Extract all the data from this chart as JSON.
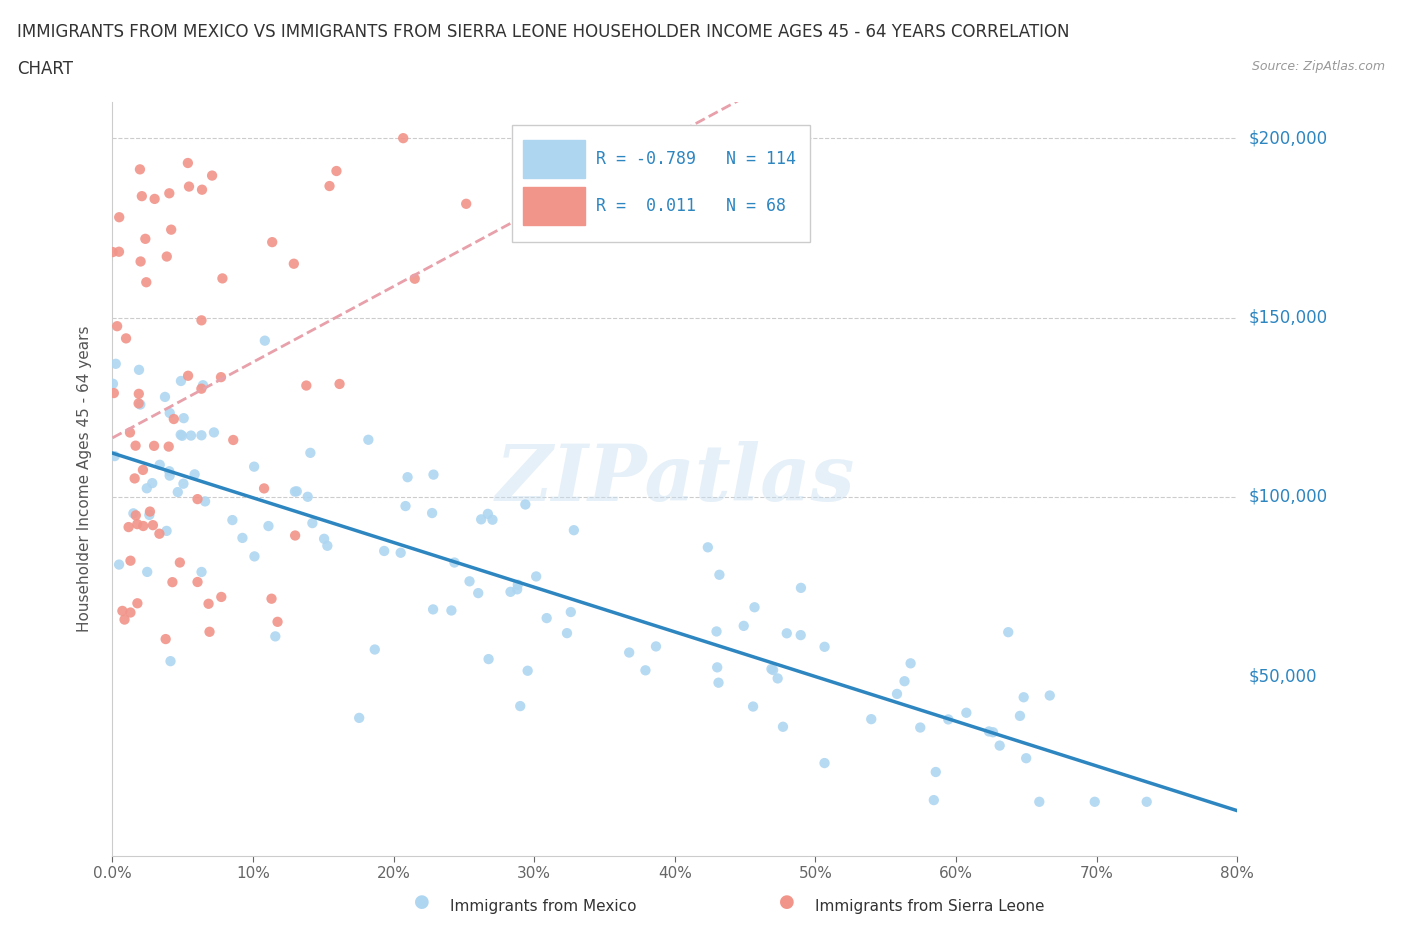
{
  "title_line1": "IMMIGRANTS FROM MEXICO VS IMMIGRANTS FROM SIERRA LEONE HOUSEHOLDER INCOME AGES 45 - 64 YEARS CORRELATION",
  "title_line2": "CHART",
  "source": "Source: ZipAtlas.com",
  "ylabel": "Householder Income Ages 45 - 64 years",
  "watermark": "ZIPatlas",
  "mexico_R": -0.789,
  "mexico_N": 114,
  "sierraleone_R": 0.011,
  "sierraleone_N": 68,
  "mexico_color": "#aed6f1",
  "sierraleone_color": "#f1948a",
  "mexico_line_color": "#2e86c1",
  "sierraleone_line_color": "#e8a0aa",
  "xlim": [
    0.0,
    0.8
  ],
  "ylim": [
    0,
    210000
  ],
  "xticks": [
    0.0,
    0.1,
    0.2,
    0.3,
    0.4,
    0.5,
    0.6,
    0.7,
    0.8
  ],
  "yticks": [
    0,
    50000,
    100000,
    150000,
    200000
  ],
  "ytick_labels": [
    "",
    "$50,000",
    "$100,000",
    "$150,000",
    "$200,000"
  ],
  "background_color": "#ffffff",
  "grid_color": "#cccccc",
  "title_color": "#333333",
  "axis_label_color": "#555555",
  "legend_value_color": "#2e86c1",
  "seed": 99
}
